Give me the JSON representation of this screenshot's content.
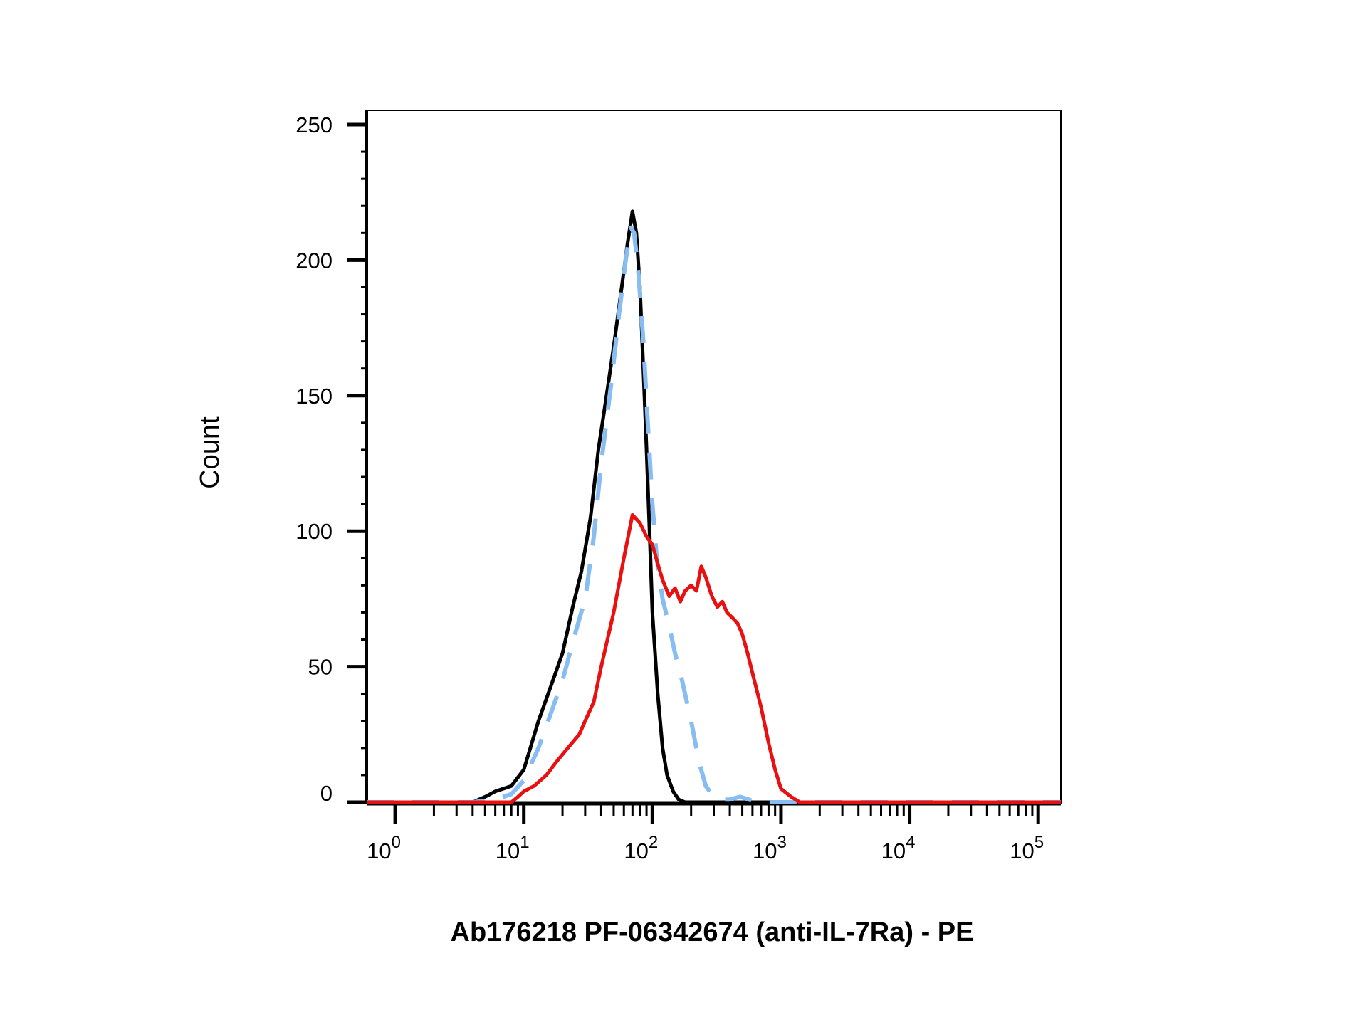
{
  "chart_data": {
    "type": "line",
    "title": "",
    "xlabel": "Ab176218 PF-06342674 (anti-IL-7Ra) - PE",
    "ylabel": "Count",
    "x_scale": "log",
    "xlim": [
      0.6,
      150000
    ],
    "ylim": [
      0,
      250
    ],
    "grid": false,
    "legend": "none",
    "y_ticks": [
      0,
      50,
      100,
      150,
      200,
      250
    ],
    "y_tick_labels": [
      "0",
      "50",
      "100",
      "150",
      "200",
      "250"
    ],
    "x_ticks": [
      1,
      10,
      100,
      1000,
      10000,
      100000
    ],
    "x_tick_labels": [
      {
        "base": "10",
        "exp": "0"
      },
      {
        "base": "10",
        "exp": "1"
      },
      {
        "base": "10",
        "exp": "2"
      },
      {
        "base": "10",
        "exp": "3"
      },
      {
        "base": "10",
        "exp": "4"
      },
      {
        "base": "10",
        "exp": "5"
      }
    ],
    "series": [
      {
        "color": "#000000",
        "dash": "solid",
        "x": [
          0.6,
          4,
          5,
          6,
          8,
          10,
          13,
          16,
          20,
          24,
          28,
          33,
          38,
          44,
          50,
          57,
          64,
          70,
          75,
          80,
          85,
          90,
          95,
          100,
          110,
          120,
          130,
          145,
          160,
          180,
          200,
          250,
          350,
          600,
          1000,
          150000
        ],
        "y": [
          0,
          0,
          2,
          4,
          6,
          12,
          30,
          42,
          55,
          72,
          85,
          105,
          130,
          150,
          168,
          188,
          206,
          218,
          210,
          190,
          160,
          130,
          100,
          70,
          40,
          20,
          10,
          4,
          1,
          0,
          0,
          0,
          0,
          0,
          0,
          0
        ]
      },
      {
        "color": "#87bdf0",
        "dash": "dashed",
        "x": [
          0.6,
          4,
          6,
          8,
          10,
          13,
          16,
          20,
          25,
          30,
          35,
          40,
          48,
          55,
          62,
          68,
          72,
          78,
          85,
          92,
          100,
          108,
          120,
          135,
          150,
          170,
          200,
          230,
          260,
          300,
          350,
          400,
          480,
          560,
          650,
          750,
          850,
          1000,
          150000
        ],
        "y": [
          0,
          0,
          1,
          3,
          8,
          20,
          32,
          45,
          62,
          75,
          98,
          125,
          155,
          180,
          200,
          212,
          210,
          195,
          170,
          140,
          110,
          90,
          75,
          65,
          55,
          45,
          30,
          15,
          6,
          2,
          1,
          1,
          2,
          1,
          0,
          0,
          0,
          0,
          0
        ]
      },
      {
        "color": "#e81010",
        "dash": "solid",
        "x": [
          0.6,
          8,
          9,
          10,
          12,
          15,
          18,
          22,
          27,
          30,
          35,
          40,
          50,
          60,
          70,
          80,
          90,
          100,
          110,
          120,
          135,
          150,
          165,
          180,
          200,
          220,
          240,
          260,
          290,
          320,
          350,
          380,
          420,
          460,
          500,
          550,
          620,
          700,
          800,
          900,
          1000,
          1200,
          1400,
          1700,
          2000,
          2500,
          150000
        ],
        "y": [
          0,
          0,
          2,
          4,
          6,
          10,
          15,
          20,
          25,
          30,
          37,
          50,
          70,
          90,
          106,
          103,
          98,
          95,
          88,
          82,
          76,
          79,
          74,
          78,
          80,
          78,
          87,
          83,
          76,
          72,
          74,
          70,
          68,
          66,
          62,
          55,
          45,
          35,
          22,
          12,
          5,
          2,
          0,
          0,
          0,
          0,
          0
        ]
      }
    ]
  }
}
